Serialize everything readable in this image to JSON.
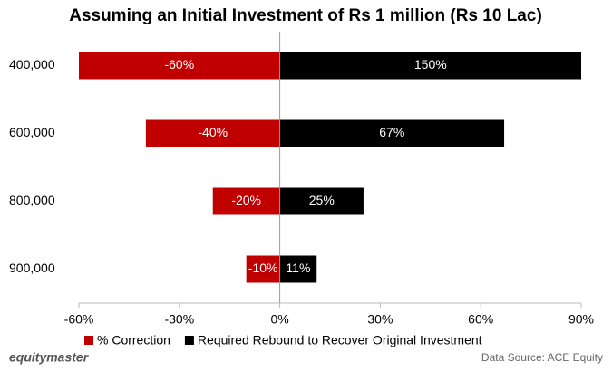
{
  "chart_data": {
    "type": "diverging-bar",
    "title": "Assuming an Initial Investment of Rs 1 million (Rs 10 Lac)",
    "categories": [
      "400,000",
      "600,000",
      "800,000",
      "900,000"
    ],
    "series": [
      {
        "name": "% Correction",
        "color": "#c00000",
        "values": [
          -60,
          -40,
          -20,
          -10
        ],
        "value_labels": [
          "-60%",
          "-40%",
          "-20%",
          "-10%"
        ]
      },
      {
        "name": "Required Rebound to Recover Original Investment",
        "color": "#000000",
        "values": [
          150,
          67,
          25,
          11
        ],
        "value_labels": [
          "150%",
          "67%",
          "25%",
          "11%"
        ]
      }
    ],
    "xlim": [
      -60,
      90
    ],
    "xticks": [
      {
        "value": -60,
        "label": "-60%"
      },
      {
        "value": -30,
        "label": "-30%"
      },
      {
        "value": 0,
        "label": "0%"
      },
      {
        "value": 30,
        "label": "30%"
      },
      {
        "value": 60,
        "label": "60%"
      },
      {
        "value": 90,
        "label": "90%"
      }
    ],
    "brand": "equitymaster",
    "source": "Data Source: ACE Equity"
  }
}
